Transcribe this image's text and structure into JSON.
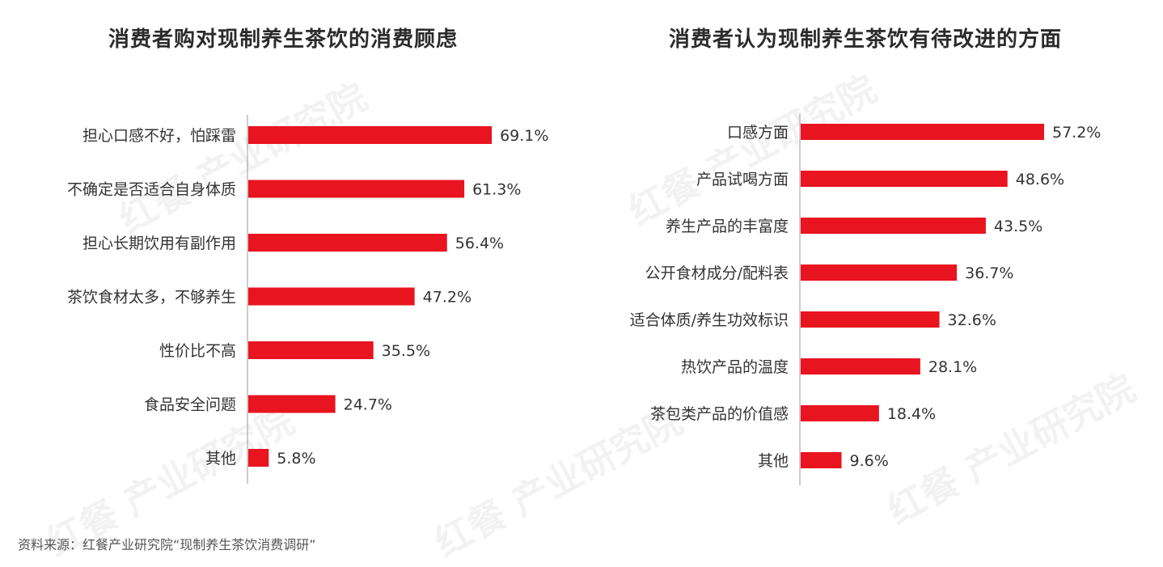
{
  "charts": {
    "left": {
      "title": "消费者购对现制养生茶饮的消费顾虑"
    },
    "right": {
      "title": "消费者认为现制养生茶饮有待改进的方面"
    }
  },
  "source": "资料来源：红餐产业研究院“现制养生茶饮消费调研”",
  "watermark": "红餐 产业研究院",
  "colors": {
    "bar": "#e8141f",
    "axis": "#999999",
    "label": "#333333"
  },
  "chart_data": [
    {
      "type": "bar",
      "orientation": "horizontal",
      "title": "消费者购对现制养生茶饮的消费顾虑",
      "categories": [
        "担心口感不好，怕踩雷",
        "不确定是否适合自身体质",
        "担心长期饮用有副作用",
        "茶饮食材太多，不够养生",
        "性价比不高",
        "食品安全问题",
        "其他"
      ],
      "values": [
        69.1,
        61.3,
        56.4,
        47.2,
        35.5,
        24.7,
        5.8
      ],
      "value_labels": [
        "69.1%",
        "61.3%",
        "56.4%",
        "47.2%",
        "35.5%",
        "24.7%",
        "5.8%"
      ],
      "unit": "%",
      "xlim": [
        0,
        70
      ],
      "grid": false
    },
    {
      "type": "bar",
      "orientation": "horizontal",
      "title": "消费者认为现制养生茶饮有待改进的方面",
      "categories": [
        "口感方面",
        "产品试喝方面",
        "养生产品的丰富度",
        "公开食材成分/配料表",
        "适合体质/养生功效标识",
        "热饮产品的温度",
        "茶包类产品的价值感",
        "其他"
      ],
      "values": [
        57.2,
        48.6,
        43.5,
        36.7,
        32.6,
        28.1,
        18.4,
        9.6
      ],
      "value_labels": [
        "57.2%",
        "48.6%",
        "43.5%",
        "36.7%",
        "32.6%",
        "28.1%",
        "18.4%",
        "9.6%"
      ],
      "unit": "%",
      "xlim": [
        0,
        57.2
      ],
      "grid": false
    }
  ]
}
